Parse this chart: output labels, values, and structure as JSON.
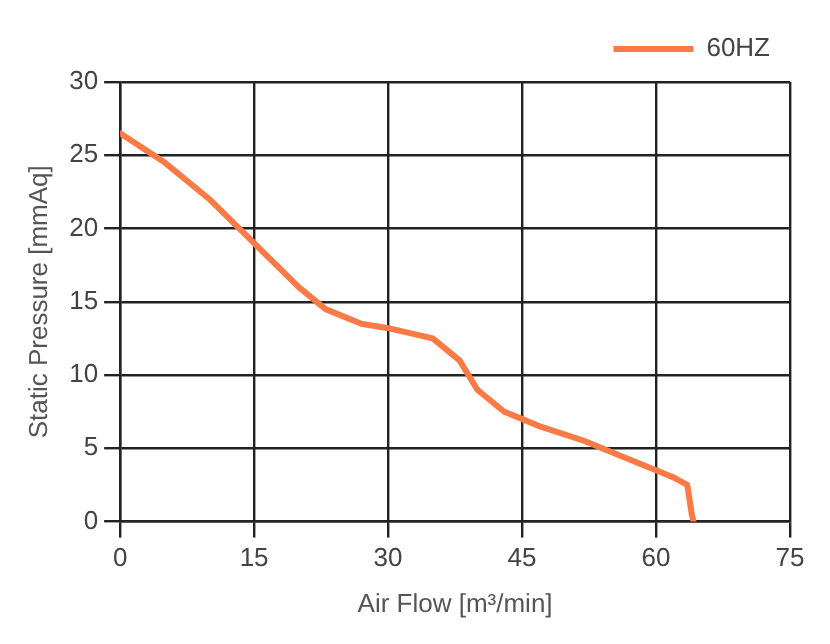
{
  "chart_data": {
    "type": "line",
    "xlabel": "Air Flow [m³/min]",
    "ylabel": "Static Pressure [mmAq]",
    "xlim": [
      0,
      75
    ],
    "xticks": [
      0,
      15,
      30,
      45,
      60,
      75
    ],
    "ylim": [
      0,
      30
    ],
    "yticks": [
      0,
      5,
      10,
      15,
      20,
      25,
      30
    ],
    "grid": true,
    "legend": "top right",
    "marker": "none",
    "line_style": "solid",
    "series": [
      {
        "name": "60HZ",
        "color": "#fb7a46",
        "x": [
          0,
          5,
          10,
          15,
          20,
          23,
          27,
          30,
          35,
          38,
          40,
          43,
          47,
          52,
          56,
          60,
          62,
          63.5,
          64,
          64.2
        ],
        "values": [
          26.5,
          24.5,
          22,
          19,
          16,
          14.5,
          13.5,
          13.2,
          12.5,
          11,
          9,
          7.5,
          6.5,
          5.5,
          4.5,
          3.5,
          3,
          2.5,
          0.5,
          0
        ]
      }
    ]
  }
}
